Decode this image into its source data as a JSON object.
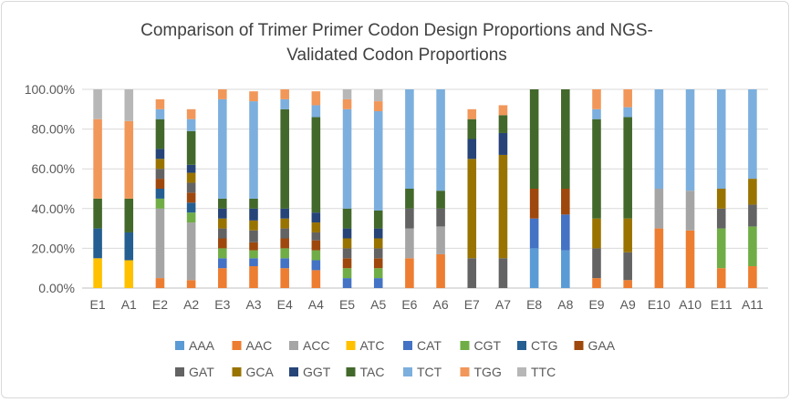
{
  "chart_data": {
    "type": "bar",
    "stacked": true,
    "title_line1": "Comparison of Trimer Primer Codon Design Proportions and NGS-",
    "title_line2": "Validated Codon Proportions",
    "categories": [
      "E1",
      "A1",
      "E2",
      "A2",
      "E3",
      "A3",
      "E4",
      "A4",
      "E5",
      "A5",
      "E6",
      "A6",
      "E7",
      "A7",
      "E8",
      "A8",
      "E9",
      "A9",
      "E10",
      "A10",
      "E11",
      "A11"
    ],
    "y_tick_labels": [
      "0.00%",
      "20.00%",
      "40.00%",
      "60.00%",
      "80.00%",
      "100.00%"
    ],
    "ylim": [
      0,
      1
    ],
    "grid": true,
    "legend_position": "bottom",
    "series": [
      {
        "name": "AAA",
        "color": "#5b9bd5",
        "values": [
          0,
          0,
          0,
          0,
          0,
          0,
          0,
          0,
          0,
          0,
          0,
          0,
          0,
          0,
          0.2,
          0.19,
          0,
          0,
          0,
          0,
          0,
          0
        ]
      },
      {
        "name": "AAC",
        "color": "#ed7d31",
        "values": [
          0,
          0,
          0.05,
          0.04,
          0.1,
          0.11,
          0.1,
          0.09,
          0,
          0,
          0.15,
          0.17,
          0,
          0,
          0,
          0,
          0.05,
          0.04,
          0.3,
          0.29,
          0.1,
          0.11
        ]
      },
      {
        "name": "ACC",
        "color": "#a5a5a5",
        "values": [
          0,
          0,
          0.35,
          0.29,
          0,
          0,
          0,
          0,
          0,
          0,
          0.15,
          0.14,
          0,
          0,
          0,
          0,
          0,
          0,
          0.2,
          0.2,
          0,
          0
        ]
      },
      {
        "name": "ATC",
        "color": "#ffc000",
        "values": [
          0.15,
          0.14,
          0,
          0,
          0,
          0,
          0,
          0,
          0,
          0,
          0,
          0,
          0,
          0,
          0,
          0,
          0,
          0,
          0,
          0,
          0,
          0
        ]
      },
      {
        "name": "CAT",
        "color": "#4472c4",
        "values": [
          0,
          0,
          0,
          0,
          0.05,
          0.04,
          0.05,
          0.05,
          0.05,
          0.05,
          0,
          0,
          0,
          0,
          0.15,
          0.18,
          0,
          0,
          0,
          0,
          0,
          0
        ]
      },
      {
        "name": "CGT",
        "color": "#70ad47",
        "values": [
          0,
          0,
          0.05,
          0.05,
          0.05,
          0.04,
          0.05,
          0.05,
          0.05,
          0.05,
          0,
          0,
          0,
          0,
          0,
          0,
          0,
          0,
          0,
          0,
          0.2,
          0.2
        ]
      },
      {
        "name": "CTG",
        "color": "#255e91",
        "values": [
          0.15,
          0.14,
          0.05,
          0.05,
          0,
          0,
          0,
          0,
          0,
          0,
          0,
          0,
          0,
          0,
          0,
          0,
          0,
          0,
          0,
          0,
          0,
          0
        ]
      },
      {
        "name": "GAA",
        "color": "#9e480e",
        "values": [
          0,
          0,
          0.05,
          0.05,
          0.05,
          0.04,
          0.05,
          0.05,
          0.05,
          0.05,
          0,
          0,
          0,
          0,
          0.15,
          0.13,
          0,
          0,
          0,
          0,
          0,
          0
        ]
      },
      {
        "name": "GAT",
        "color": "#636363",
        "values": [
          0,
          0,
          0.05,
          0.05,
          0.05,
          0.06,
          0.05,
          0.04,
          0.05,
          0.05,
          0.1,
          0.09,
          0.15,
          0.15,
          0,
          0,
          0.15,
          0.14,
          0,
          0,
          0.1,
          0.11
        ]
      },
      {
        "name": "GCA",
        "color": "#997300",
        "values": [
          0,
          0,
          0.05,
          0.05,
          0.05,
          0.05,
          0.05,
          0.05,
          0.05,
          0.05,
          0,
          0,
          0.5,
          0.52,
          0,
          0,
          0.15,
          0.17,
          0,
          0,
          0.1,
          0.13
        ]
      },
      {
        "name": "GGT",
        "color": "#264478",
        "values": [
          0,
          0,
          0.05,
          0.04,
          0.05,
          0.06,
          0.05,
          0.05,
          0.05,
          0.05,
          0,
          0,
          0.1,
          0.11,
          0,
          0,
          0,
          0,
          0,
          0,
          0,
          0
        ]
      },
      {
        "name": "TAC",
        "color": "#43682b",
        "values": [
          0.15,
          0.17,
          0.15,
          0.17,
          0.05,
          0.05,
          0.5,
          0.48,
          0.1,
          0.09,
          0.1,
          0.09,
          0.1,
          0.09,
          0.5,
          0.5,
          0.5,
          0.51,
          0,
          0,
          0,
          0
        ]
      },
      {
        "name": "TCT",
        "color": "#7cafdd",
        "values": [
          0,
          0,
          0.05,
          0.06,
          0.5,
          0.49,
          0.05,
          0.06,
          0.5,
          0.5,
          0.5,
          0.51,
          0,
          0,
          0,
          0,
          0.05,
          0.05,
          0.5,
          0.51,
          0.5,
          0.45
        ]
      },
      {
        "name": "TGG",
        "color": "#f1975a",
        "values": [
          0.4,
          0.39,
          0.05,
          0.05,
          0.05,
          0.05,
          0.05,
          0.07,
          0.05,
          0.05,
          0,
          0,
          0.05,
          0.05,
          0,
          0,
          0.1,
          0.09,
          0,
          0,
          0,
          0
        ]
      },
      {
        "name": "TTC",
        "color": "#b7b7b7",
        "values": [
          0.15,
          0.16,
          0,
          0,
          0,
          0,
          0,
          0,
          0.05,
          0.06,
          0,
          0,
          0,
          0,
          0,
          0,
          0,
          0,
          0,
          0,
          0,
          0
        ]
      }
    ]
  }
}
